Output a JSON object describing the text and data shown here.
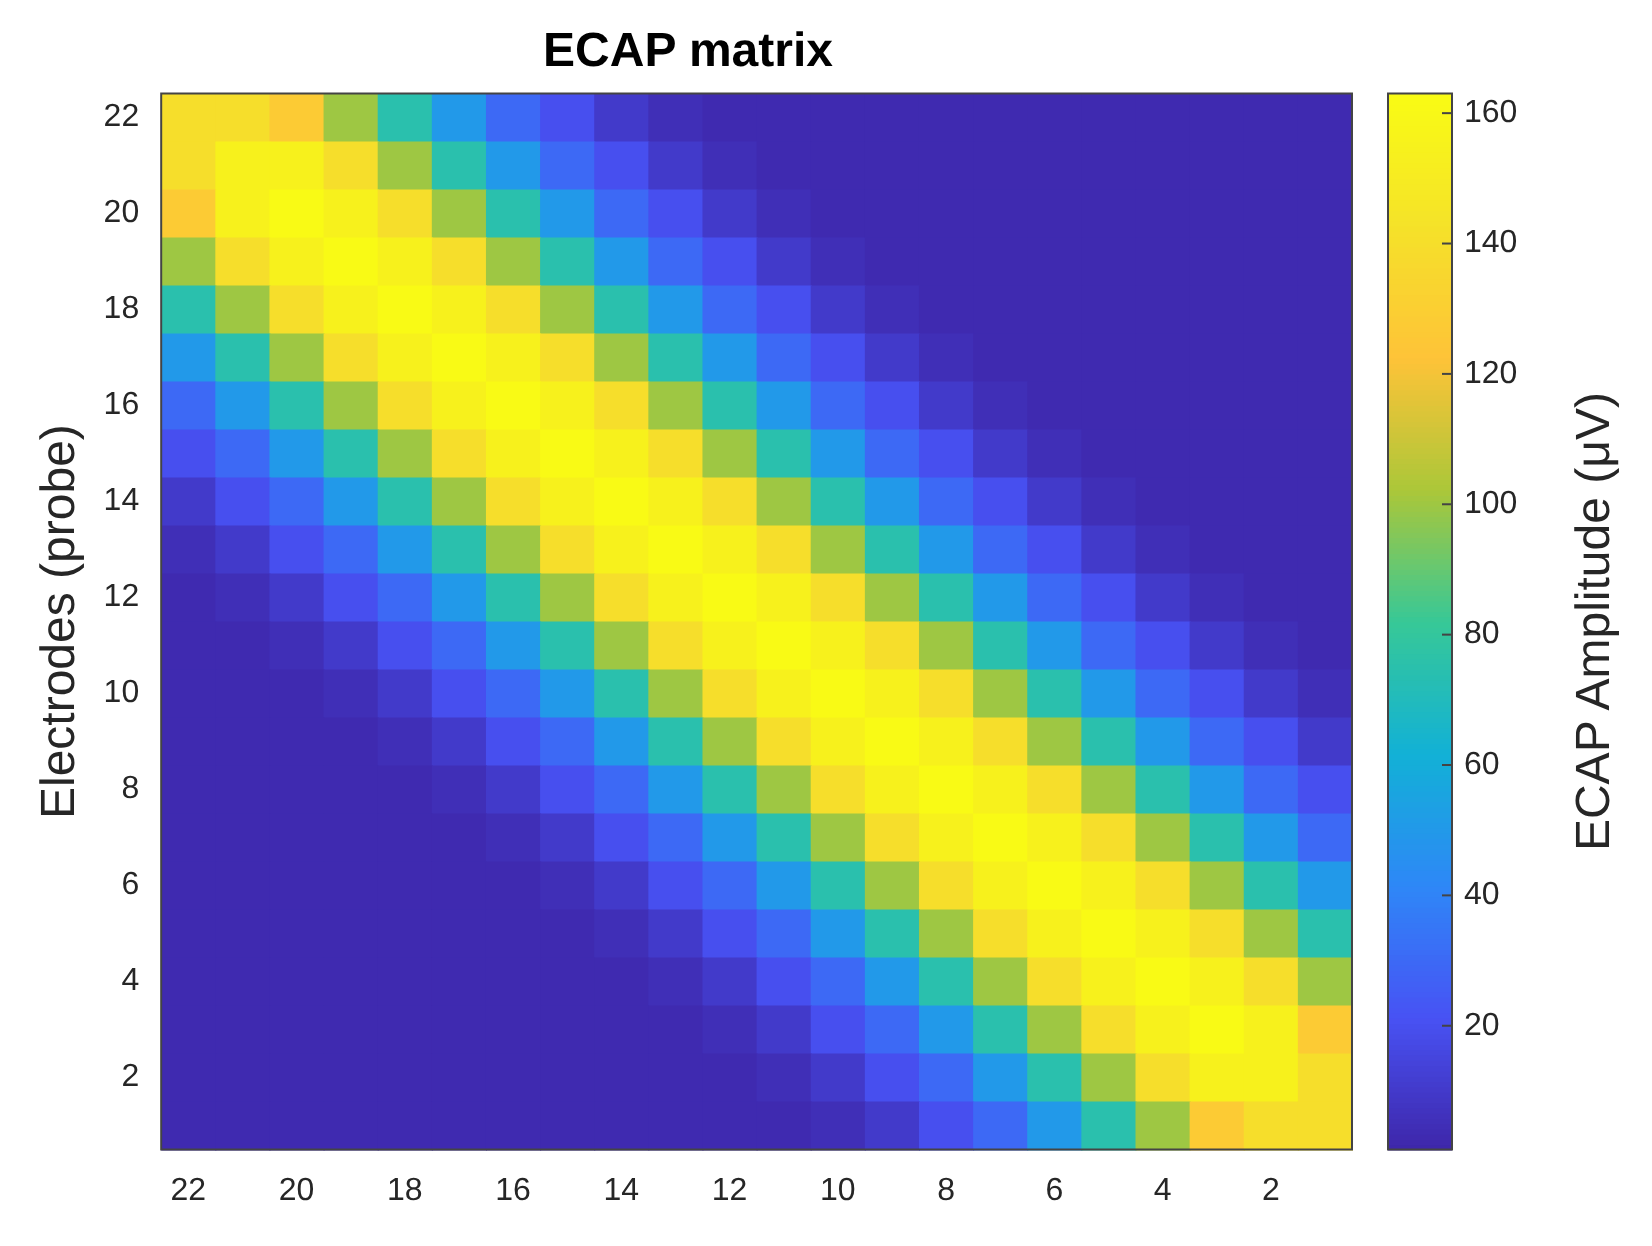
{
  "chart_data": {
    "type": "heatmap",
    "title": "ECAP matrix",
    "ylabel": "Electrodes (probe)",
    "clabel": "ECAP Amplitude (μV)",
    "categories": [
      "22",
      null,
      "20",
      null,
      "18",
      null,
      "16",
      null,
      "14",
      null,
      "12",
      null,
      "10",
      null,
      "8",
      null,
      "6",
      null,
      "4",
      null,
      "2",
      null
    ],
    "y_categories": [
      "22",
      null,
      "20",
      null,
      "18",
      null,
      "16",
      null,
      "14",
      null,
      "12",
      null,
      "10",
      null,
      "8",
      null,
      "6",
      null,
      "4",
      null,
      "2",
      null
    ],
    "clim": [
      1,
      163
    ],
    "cticks": [
      20,
      40,
      60,
      80,
      100,
      120,
      140,
      160
    ],
    "cells": [
      [
        140,
        140,
        128,
        100,
        75,
        50,
        30,
        20,
        10,
        5,
        3,
        3,
        3,
        3,
        3,
        3,
        3,
        3,
        3,
        3,
        3,
        3
      ],
      [
        140,
        155,
        155,
        140,
        100,
        75,
        50,
        30,
        20,
        10,
        5,
        3,
        3,
        3,
        3,
        3,
        3,
        3,
        3,
        3,
        3,
        3
      ],
      [
        128,
        155,
        162,
        155,
        140,
        100,
        75,
        50,
        30,
        20,
        10,
        5,
        3,
        3,
        3,
        3,
        3,
        3,
        3,
        3,
        3,
        3
      ],
      [
        100,
        140,
        155,
        162,
        155,
        140,
        100,
        75,
        50,
        30,
        20,
        10,
        5,
        3,
        3,
        3,
        3,
        3,
        3,
        3,
        3,
        3
      ],
      [
        75,
        100,
        140,
        155,
        162,
        155,
        140,
        100,
        75,
        50,
        30,
        20,
        10,
        5,
        3,
        3,
        3,
        3,
        3,
        3,
        3,
        3
      ],
      [
        50,
        75,
        100,
        140,
        155,
        162,
        155,
        140,
        100,
        75,
        50,
        30,
        20,
        10,
        5,
        3,
        3,
        3,
        3,
        3,
        3,
        3
      ],
      [
        30,
        50,
        75,
        100,
        140,
        155,
        162,
        155,
        140,
        100,
        75,
        50,
        30,
        20,
        10,
        5,
        3,
        3,
        3,
        3,
        3,
        3
      ],
      [
        20,
        30,
        50,
        75,
        100,
        140,
        155,
        162,
        155,
        140,
        100,
        75,
        50,
        30,
        20,
        10,
        5,
        3,
        3,
        3,
        3,
        3
      ],
      [
        10,
        20,
        30,
        50,
        75,
        100,
        140,
        155,
        162,
        155,
        140,
        100,
        75,
        50,
        30,
        20,
        10,
        5,
        3,
        3,
        3,
        3
      ],
      [
        5,
        10,
        20,
        30,
        50,
        75,
        100,
        140,
        155,
        162,
        155,
        140,
        100,
        75,
        50,
        30,
        20,
        10,
        5,
        3,
        3,
        3
      ],
      [
        3,
        5,
        10,
        20,
        30,
        50,
        75,
        100,
        140,
        155,
        162,
        155,
        140,
        100,
        75,
        50,
        30,
        20,
        10,
        5,
        3,
        3
      ],
      [
        3,
        3,
        5,
        10,
        20,
        30,
        50,
        75,
        100,
        140,
        155,
        162,
        155,
        140,
        100,
        75,
        50,
        30,
        20,
        10,
        5,
        3
      ],
      [
        3,
        3,
        3,
        5,
        10,
        20,
        30,
        50,
        75,
        100,
        140,
        155,
        162,
        155,
        140,
        100,
        75,
        50,
        30,
        20,
        10,
        5
      ],
      [
        3,
        3,
        3,
        3,
        5,
        10,
        20,
        30,
        50,
        75,
        100,
        140,
        155,
        162,
        155,
        140,
        100,
        75,
        50,
        30,
        20,
        10
      ],
      [
        3,
        3,
        3,
        3,
        3,
        5,
        10,
        20,
        30,
        50,
        75,
        100,
        140,
        155,
        162,
        155,
        140,
        100,
        75,
        50,
        30,
        20
      ],
      [
        3,
        3,
        3,
        3,
        3,
        3,
        5,
        10,
        20,
        30,
        50,
        75,
        100,
        140,
        155,
        162,
        155,
        140,
        100,
        75,
        50,
        30
      ],
      [
        3,
        3,
        3,
        3,
        3,
        3,
        3,
        5,
        10,
        20,
        30,
        50,
        75,
        100,
        140,
        155,
        162,
        155,
        140,
        100,
        75,
        50
      ],
      [
        3,
        3,
        3,
        3,
        3,
        3,
        3,
        3,
        5,
        10,
        20,
        30,
        50,
        75,
        100,
        140,
        155,
        162,
        155,
        140,
        100,
        75
      ],
      [
        3,
        3,
        3,
        3,
        3,
        3,
        3,
        3,
        3,
        5,
        10,
        20,
        30,
        50,
        75,
        100,
        140,
        155,
        162,
        155,
        140,
        100
      ],
      [
        3,
        3,
        3,
        3,
        3,
        3,
        3,
        3,
        3,
        3,
        5,
        10,
        20,
        30,
        50,
        75,
        100,
        140,
        155,
        162,
        155,
        128
      ],
      [
        3,
        3,
        3,
        3,
        3,
        3,
        3,
        3,
        3,
        3,
        3,
        5,
        10,
        20,
        30,
        50,
        75,
        100,
        140,
        155,
        155,
        140
      ],
      [
        3,
        3,
        3,
        3,
        3,
        3,
        3,
        3,
        3,
        3,
        3,
        3,
        5,
        10,
        20,
        30,
        50,
        75,
        100,
        128,
        140,
        140
      ]
    ]
  }
}
